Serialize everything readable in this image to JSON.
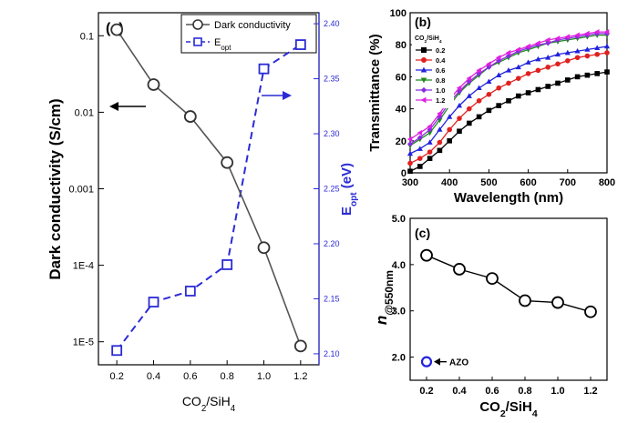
{
  "colors": {
    "axis": "#000000",
    "blue": "#2b2bd6",
    "gray": "#555555"
  },
  "chart_data": [
    {
      "panel_label": "(a)",
      "type": "line",
      "x": [
        0.2,
        0.4,
        0.6,
        0.8,
        1.0,
        1.2
      ],
      "x_ticks": [
        "0.2",
        "0.4",
        "0.6",
        "0.8",
        "1.0",
        "1.2"
      ],
      "xlabel": "CO2/SiH4",
      "xlim": [
        0.1,
        1.3
      ],
      "ylabel_left": "Dark conductivity (S/cm)",
      "yscale_left": "log",
      "ylim_left": [
        5e-06,
        0.2
      ],
      "y_ticks_left": [
        {
          "value": 0.1,
          "label": "0.1"
        },
        {
          "value": 0.01,
          "label": "0.01"
        },
        {
          "value": 0.001,
          "label": "0.001"
        },
        {
          "value": 0.0001,
          "label": "1E-4"
        },
        {
          "value": 1e-05,
          "label": "1E-5"
        }
      ],
      "ylabel_right": "Eopt (eV)",
      "ylim_right": [
        2.09,
        2.41
      ],
      "y_ticks_right": [
        "2.10",
        "2.15",
        "2.20",
        "2.25",
        "2.30",
        "2.35",
        "2.40"
      ],
      "series": [
        {
          "name": "Dark conductivity",
          "axis": "left",
          "marker": "circle",
          "style": "solid",
          "color": "#555555",
          "values": [
            0.12,
            0.023,
            0.0088,
            0.0022,
            0.00017,
            8.8e-06
          ]
        },
        {
          "name": "Eopt",
          "axis": "right",
          "marker": "square",
          "style": "dashed",
          "color": "#2b2bd6",
          "values": [
            2.103,
            2.147,
            2.157,
            2.181,
            2.359,
            2.381
          ]
        }
      ],
      "legend": "top-right"
    },
    {
      "panel_label": "(b)",
      "type": "line",
      "xlabel": "Wavelength (nm)",
      "ylabel": "Transmittance (%)",
      "xlim": [
        300,
        800
      ],
      "ylim": [
        0,
        100
      ],
      "x_ticks": [
        "300",
        "400",
        "500",
        "600",
        "700",
        "800"
      ],
      "y_ticks": [
        "0",
        "20",
        "40",
        "60",
        "80",
        "100"
      ],
      "legend_title": "CO2/SiH4",
      "legend": "top-left",
      "x": [
        300,
        325,
        350,
        375,
        400,
        425,
        450,
        475,
        500,
        525,
        550,
        575,
        600,
        625,
        650,
        675,
        700,
        725,
        750,
        775,
        800
      ],
      "series": [
        {
          "name": "0.2",
          "marker": "square",
          "color": "#000000",
          "values": [
            1,
            4,
            9,
            14,
            20,
            26,
            31,
            35,
            39,
            42,
            45,
            48,
            50,
            52,
            54,
            56,
            58,
            60,
            61,
            62,
            63
          ]
        },
        {
          "name": "0.4",
          "marker": "circle",
          "color": "#e02020",
          "values": [
            6,
            9,
            13,
            19,
            27,
            34,
            40,
            45,
            49,
            53,
            56,
            59,
            62,
            64,
            66,
            68,
            70,
            72,
            73,
            74,
            75
          ]
        },
        {
          "name": "0.6",
          "marker": "triangle-up",
          "color": "#2222dd",
          "values": [
            12,
            15,
            19,
            27,
            35,
            42,
            48,
            53,
            57,
            61,
            64,
            66,
            69,
            71,
            72,
            74,
            75,
            76,
            77,
            78,
            79
          ]
        },
        {
          "name": "0.8",
          "marker": "triangle-down",
          "color": "#1f8a1f",
          "values": [
            17,
            21,
            25,
            33,
            42,
            50,
            56,
            61,
            66,
            69,
            72,
            75,
            77,
            79,
            81,
            82,
            83,
            84,
            85,
            86,
            86
          ]
        },
        {
          "name": "1.0",
          "marker": "diamond",
          "color": "#8a2be2",
          "values": [
            18,
            22,
            27,
            35,
            44,
            51,
            57,
            62,
            66,
            70,
            73,
            76,
            78,
            80,
            81,
            83,
            84,
            85,
            86,
            87,
            87
          ]
        },
        {
          "name": "1.2",
          "marker": "triangle-left",
          "color": "#e020e0",
          "values": [
            21,
            25,
            29,
            37,
            46,
            53,
            59,
            64,
            68,
            72,
            75,
            77,
            79,
            81,
            83,
            84,
            85,
            86,
            87,
            88,
            88
          ]
        }
      ]
    },
    {
      "panel_label": "(c)",
      "type": "scatter",
      "xlabel": "CO2/SiH4",
      "ylabel": "n@550nm",
      "xlim": [
        0.1,
        1.3
      ],
      "ylim": [
        1.5,
        5.0
      ],
      "x_ticks": [
        "0.2",
        "0.4",
        "0.6",
        "0.8",
        "1.0",
        "1.2"
      ],
      "y_ticks": [
        "2.0",
        "3.0",
        "4.0",
        "5.0"
      ],
      "series": [
        {
          "name": "",
          "marker": "circle",
          "style": "solid",
          "color": "#000000",
          "x": [
            0.2,
            0.4,
            0.6,
            0.8,
            1.0,
            1.2
          ],
          "values": [
            4.2,
            3.9,
            3.7,
            3.22,
            3.18,
            2.98
          ]
        },
        {
          "name": "AZO",
          "marker": "circle",
          "color": "#2222dd",
          "x": [
            0.2
          ],
          "values": [
            1.9
          ]
        }
      ],
      "annotation": "AZO"
    }
  ]
}
